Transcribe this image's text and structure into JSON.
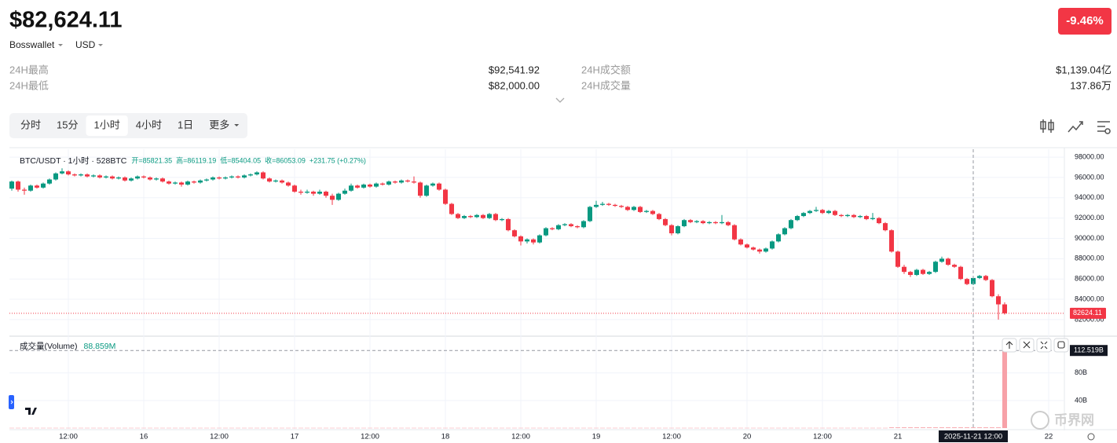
{
  "header": {
    "price": "$82,624.11",
    "exchange": "Bosswallet",
    "currency": "USD",
    "change": "-9.46%"
  },
  "stats": [
    {
      "label": "24H最高",
      "value": "$92,541.92"
    },
    {
      "label": "24H最低",
      "value": "$82,000.00"
    },
    {
      "label": "24H成交额",
      "value": "$1,139.04亿"
    },
    {
      "label": "24H成交量",
      "value": "137.86万"
    }
  ],
  "tabs": [
    "分时",
    "15分",
    "1小时",
    "4小时",
    "1日",
    "更多"
  ],
  "active_tab": 2,
  "watermark": "币界网",
  "chart_data": [
    {
      "type": "candlestick",
      "title": "BTC/USDT · 1小时 · 528BTC",
      "legend_items": [
        "开=85821.35",
        "高=86119.19",
        "低=85404.05",
        "收=86053.09",
        "+231.75 (+0.27%)"
      ],
      "up_color": "#089981",
      "down_color": "#f23645",
      "grid": true,
      "ylim": [
        80600,
        98780
      ],
      "yticks": [
        {
          "value": 82000,
          "label": "82000.00"
        },
        {
          "value": 84000,
          "label": "84000.00"
        },
        {
          "value": 86000,
          "label": "86000.00"
        },
        {
          "value": 88000,
          "label": "88000.00"
        },
        {
          "value": 90000,
          "label": "90000.00"
        },
        {
          "value": 92000,
          "label": "92000.00"
        },
        {
          "value": 94000,
          "label": "94000.00"
        },
        {
          "value": 96000,
          "label": "96000.00"
        },
        {
          "value": 98000,
          "label": "98000.00"
        }
      ],
      "last_price": 82624.11,
      "xticks": [
        {
          "value": 9,
          "label": "12:00"
        },
        {
          "value": 21,
          "label": "16"
        },
        {
          "value": 33,
          "label": "12:00"
        },
        {
          "value": 45,
          "label": "17"
        },
        {
          "value": 57,
          "label": "12:00"
        },
        {
          "value": 69,
          "label": "18"
        },
        {
          "value": 81,
          "label": "12:00"
        },
        {
          "value": 93,
          "label": "19"
        },
        {
          "value": 105,
          "label": "12:00"
        },
        {
          "value": 117,
          "label": "20"
        },
        {
          "value": 129,
          "label": "12:00"
        },
        {
          "value": 141,
          "label": "21"
        },
        {
          "value": 165,
          "label": "22"
        }
      ],
      "crosshair": {
        "value": 153,
        "label": "2025-11-21  12:00"
      },
      "candles": [
        [
          94900,
          95700,
          94700,
          95600
        ],
        [
          95600,
          95700,
          94600,
          94800
        ],
        [
          94800,
          95000,
          94300,
          94700
        ],
        [
          94700,
          95300,
          94600,
          95200
        ],
        [
          95200,
          95300,
          94900,
          95000
        ],
        [
          95000,
          95500,
          94900,
          95400
        ],
        [
          95400,
          95900,
          95300,
          95800
        ],
        [
          95800,
          96500,
          95700,
          96400
        ],
        [
          96400,
          96900,
          96300,
          96600
        ],
        [
          96600,
          96700,
          96200,
          96300
        ],
        [
          96300,
          96400,
          96100,
          96200
        ],
        [
          96200,
          96400,
          96100,
          96300
        ],
        [
          96300,
          96400,
          96000,
          96100
        ],
        [
          96100,
          96300,
          96000,
          96200
        ],
        [
          96200,
          96300,
          95900,
          96000
        ],
        [
          96000,
          96200,
          95900,
          96100
        ],
        [
          96100,
          96200,
          95800,
          95900
        ],
        [
          95900,
          96100,
          95800,
          96000
        ],
        [
          96000,
          96100,
          95600,
          95700
        ],
        [
          95700,
          96000,
          95600,
          95900
        ],
        [
          95900,
          96200,
          95800,
          96100
        ],
        [
          96100,
          96200,
          95900,
          96000
        ],
        [
          96000,
          96100,
          95700,
          95800
        ],
        [
          95800,
          96000,
          95700,
          95900
        ],
        [
          95900,
          96000,
          95500,
          95600
        ],
        [
          95600,
          95700,
          95300,
          95400
        ],
        [
          95400,
          95600,
          95300,
          95500
        ],
        [
          95500,
          95600,
          95100,
          95300
        ],
        [
          95300,
          95700,
          95200,
          95600
        ],
        [
          95600,
          95700,
          95400,
          95500
        ],
        [
          95500,
          95800,
          95400,
          95700
        ],
        [
          95700,
          95900,
          95600,
          95800
        ],
        [
          95800,
          96100,
          95700,
          96000
        ],
        [
          96000,
          96100,
          95800,
          95900
        ],
        [
          95900,
          96100,
          95800,
          96000
        ],
        [
          96000,
          96200,
          95900,
          96100
        ],
        [
          96100,
          96200,
          95900,
          96000
        ],
        [
          96000,
          96300,
          95900,
          96200
        ],
        [
          96200,
          96400,
          96100,
          96300
        ],
        [
          96300,
          96600,
          96200,
          96500
        ],
        [
          96500,
          96600,
          95800,
          95900
        ],
        [
          95900,
          96000,
          95500,
          95600
        ],
        [
          95600,
          95800,
          95500,
          95700
        ],
        [
          95700,
          95800,
          95400,
          95500
        ],
        [
          95500,
          95600,
          95100,
          95200
        ],
        [
          95200,
          95300,
          94500,
          94600
        ],
        [
          94600,
          94800,
          94300,
          94500
        ],
        [
          94500,
          94800,
          94400,
          94600
        ],
        [
          94600,
          94700,
          94200,
          94400
        ],
        [
          94400,
          94800,
          94300,
          94600
        ],
        [
          94600,
          94700,
          94000,
          94200
        ],
        [
          94200,
          94400,
          93300,
          93800
        ],
        [
          93800,
          94500,
          93700,
          94400
        ],
        [
          94400,
          94900,
          94300,
          94700
        ],
        [
          94700,
          95400,
          94600,
          95200
        ],
        [
          95200,
          95300,
          94900,
          95000
        ],
        [
          95000,
          95400,
          94900,
          95300
        ],
        [
          95300,
          95400,
          95000,
          95100
        ],
        [
          95100,
          95500,
          95000,
          95400
        ],
        [
          95400,
          95500,
          95200,
          95300
        ],
        [
          95300,
          95700,
          95200,
          95600
        ],
        [
          95600,
          95700,
          95400,
          95500
        ],
        [
          95500,
          95800,
          95400,
          95700
        ],
        [
          95700,
          95800,
          95500,
          95600
        ],
        [
          95600,
          96100,
          95400,
          95500
        ],
        [
          95500,
          95600,
          94000,
          94200
        ],
        [
          94200,
          95300,
          94100,
          95200
        ],
        [
          95200,
          95500,
          95100,
          95400
        ],
        [
          95400,
          95500,
          94700,
          94800
        ],
        [
          94800,
          94900,
          93300,
          93400
        ],
        [
          93400,
          93500,
          92300,
          92400
        ],
        [
          92400,
          92500,
          91900,
          92000
        ],
        [
          92000,
          92300,
          91900,
          92200
        ],
        [
          92200,
          92300,
          92000,
          92100
        ],
        [
          92100,
          92400,
          92000,
          92300
        ],
        [
          92300,
          92400,
          91900,
          92000
        ],
        [
          92000,
          92500,
          91900,
          92400
        ],
        [
          92400,
          92500,
          91700,
          91800
        ],
        [
          91800,
          92000,
          91700,
          91900
        ],
        [
          91900,
          92000,
          90700,
          90800
        ],
        [
          90800,
          90900,
          90100,
          90200
        ],
        [
          90200,
          90300,
          89300,
          89700
        ],
        [
          89700,
          90000,
          89500,
          89900
        ],
        [
          89900,
          90000,
          89400,
          89600
        ],
        [
          89600,
          90400,
          89500,
          90300
        ],
        [
          90300,
          91100,
          90200,
          91000
        ],
        [
          91000,
          91100,
          90800,
          90900
        ],
        [
          90900,
          91400,
          90800,
          91300
        ],
        [
          91300,
          91500,
          91200,
          91400
        ],
        [
          91400,
          91500,
          91100,
          91200
        ],
        [
          91200,
          91300,
          91000,
          91100
        ],
        [
          91100,
          91800,
          91000,
          91700
        ],
        [
          91700,
          93200,
          91600,
          93100
        ],
        [
          93100,
          93700,
          93000,
          93300
        ],
        [
          93300,
          93600,
          93200,
          93400
        ],
        [
          93400,
          93500,
          93200,
          93300
        ],
        [
          93300,
          93400,
          93100,
          93200
        ],
        [
          93200,
          93300,
          93000,
          93100
        ],
        [
          93100,
          93200,
          92700,
          92800
        ],
        [
          92800,
          93200,
          92700,
          93100
        ],
        [
          93100,
          93200,
          92500,
          92600
        ],
        [
          92600,
          92800,
          92500,
          92700
        ],
        [
          92700,
          92800,
          92300,
          92400
        ],
        [
          92400,
          92500,
          91800,
          91900
        ],
        [
          91900,
          92000,
          91200,
          91300
        ],
        [
          91300,
          91400,
          90300,
          90500
        ],
        [
          90500,
          91300,
          90400,
          91200
        ],
        [
          91200,
          91900,
          91100,
          91800
        ],
        [
          91800,
          91900,
          91500,
          91600
        ],
        [
          91600,
          91800,
          91500,
          91700
        ],
        [
          91700,
          91800,
          91400,
          91500
        ],
        [
          91500,
          91700,
          91400,
          91600
        ],
        [
          91600,
          91700,
          91400,
          91500
        ],
        [
          91500,
          92300,
          91400,
          91600
        ],
        [
          91600,
          91700,
          91200,
          91300
        ],
        [
          91300,
          91400,
          89800,
          89900
        ],
        [
          89900,
          90000,
          89300,
          89400
        ],
        [
          89400,
          89500,
          89000,
          89100
        ],
        [
          89100,
          89200,
          88800,
          88900
        ],
        [
          88900,
          89000,
          88500,
          88700
        ],
        [
          88700,
          89100,
          88600,
          89000
        ],
        [
          89000,
          89800,
          88900,
          89700
        ],
        [
          89700,
          90500,
          89600,
          90400
        ],
        [
          90400,
          91100,
          90300,
          91000
        ],
        [
          91000,
          91900,
          90900,
          91800
        ],
        [
          91800,
          92300,
          91700,
          92200
        ],
        [
          92200,
          92600,
          92100,
          92500
        ],
        [
          92500,
          92800,
          92400,
          92700
        ],
        [
          92700,
          93100,
          92600,
          92800
        ],
        [
          92800,
          92900,
          92400,
          92500
        ],
        [
          92500,
          92800,
          92400,
          92700
        ],
        [
          92700,
          92800,
          92200,
          92300
        ],
        [
          92300,
          92400,
          92100,
          92200
        ],
        [
          92200,
          92400,
          92100,
          92300
        ],
        [
          92300,
          92400,
          92000,
          92100
        ],
        [
          92100,
          92300,
          92000,
          92200
        ],
        [
          92200,
          92300,
          91800,
          91900
        ],
        [
          91900,
          92500,
          91800,
          92000
        ],
        [
          92000,
          92100,
          91400,
          91500
        ],
        [
          91500,
          91600,
          90700,
          90800
        ],
        [
          90800,
          90900,
          88600,
          88700
        ],
        [
          88700,
          88800,
          87100,
          87200
        ],
        [
          87200,
          87400,
          86500,
          86700
        ],
        [
          86700,
          86800,
          86200,
          86400
        ],
        [
          86400,
          87000,
          86300,
          86900
        ],
        [
          86900,
          87000,
          86400,
          86500
        ],
        [
          86500,
          86800,
          86400,
          86700
        ],
        [
          86700,
          87800,
          86600,
          87700
        ],
        [
          87700,
          88200,
          87600,
          88000
        ],
        [
          88000,
          88100,
          87300,
          87400
        ],
        [
          87400,
          87500,
          87100,
          87200
        ],
        [
          87200,
          87300,
          85900,
          86000
        ],
        [
          86000,
          86100,
          85400,
          85500
        ],
        [
          85500,
          86200,
          85400,
          86100
        ],
        [
          86100,
          86400,
          86000,
          86300
        ],
        [
          86300,
          86400,
          85800,
          85900
        ],
        [
          85900,
          86000,
          84200,
          84300
        ],
        [
          84300,
          84500,
          82000,
          83500
        ],
        [
          83500,
          83700,
          82500,
          82624.11
        ]
      ]
    },
    {
      "type": "bar",
      "title": "成交量(Volume)",
      "legend_value": "88.859M",
      "color": "#f7a1a8",
      "ylim": [
        0,
        131
      ],
      "yticks": [
        {
          "value": 40,
          "label": "40B"
        },
        {
          "value": 80,
          "label": "80B"
        }
      ],
      "last_value_label": "112.519B",
      "values": [
        0.3,
        0.3,
        0.3,
        0.3,
        0.3,
        0.3,
        0.3,
        0.3,
        0.3,
        0.3,
        0.3,
        0.3,
        0.3,
        0.3,
        0.3,
        0.3,
        0.3,
        0.3,
        0.3,
        0.3,
        0.3,
        0.3,
        0.3,
        0.3,
        0.3,
        0.3,
        0.3,
        0.3,
        0.3,
        0.3,
        0.3,
        0.3,
        0.3,
        0.3,
        0.3,
        0.3,
        0.3,
        0.3,
        0.3,
        0.3,
        0.3,
        0.3,
        0.3,
        0.3,
        0.3,
        0.3,
        0.3,
        0.3,
        0.3,
        0.3,
        0.3,
        0.3,
        0.3,
        0.3,
        0.3,
        0.3,
        0.3,
        0.3,
        0.3,
        0.3,
        0.3,
        0.3,
        0.3,
        0.3,
        0.3,
        0.3,
        0.3,
        0.3,
        0.3,
        0.3,
        0.3,
        0.3,
        0.3,
        0.3,
        0.3,
        0.3,
        0.3,
        0.3,
        0.3,
        0.3,
        0.3,
        0.3,
        0.3,
        0.3,
        0.3,
        0.3,
        0.3,
        0.3,
        0.3,
        0.3,
        0.3,
        0.3,
        0.3,
        0.3,
        0.3,
        0.3,
        0.3,
        0.3,
        0.3,
        0.3,
        0.3,
        0.3,
        0.3,
        0.3,
        0.3,
        0.3,
        0.3,
        0.3,
        0.3,
        0.3,
        0.3,
        0.3,
        0.3,
        0.3,
        0.3,
        0.3,
        0.3,
        0.3,
        0.3,
        0.3,
        0.3,
        0.3,
        0.3,
        0.3,
        0.3,
        0.3,
        0.3,
        0.3,
        0.3,
        0.3,
        0.3,
        0.3,
        0.3,
        0.3,
        0.3,
        0.3,
        0.3,
        0.3,
        0.3,
        0.3,
        1,
        1,
        1,
        1,
        1,
        1,
        1,
        1,
        1,
        1,
        1,
        1,
        1,
        1,
        1,
        1,
        1,
        1,
        112.519
      ]
    }
  ]
}
